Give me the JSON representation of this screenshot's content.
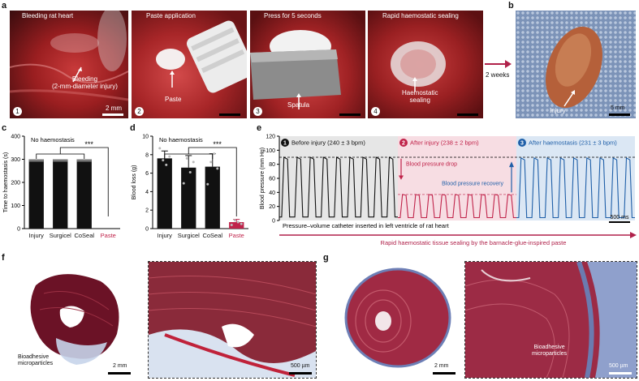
{
  "panels": {
    "a": "a",
    "b": "b",
    "c": "c",
    "d": "d",
    "e": "e",
    "f": "f",
    "g": "g"
  },
  "panel_a": {
    "steps": [
      {
        "num": "1",
        "title": "Bleeding rat heart",
        "label": "Bleeding\n(2-mm-diameter injury)",
        "scale": "2 mm"
      },
      {
        "num": "2",
        "title": "Paste application",
        "label": "Paste",
        "scale": ""
      },
      {
        "num": "3",
        "title": "Press for 5 seconds",
        "label": "Spatula",
        "scale": ""
      },
      {
        "num": "4",
        "title": "Rapid haemostatic sealing",
        "label": "Haemostatic\nsealing",
        "scale": ""
      }
    ],
    "arrow_label": "2 weeks"
  },
  "panel_b": {
    "label": "Injury",
    "scale": "5 mm"
  },
  "chart_data": [
    {
      "type": "bar",
      "panel": "c",
      "categories": [
        "Injury",
        "Surgicel",
        "CoSeal",
        "Paste"
      ],
      "values": [
        300,
        300,
        300,
        0
      ],
      "ylabel": "Time to haemostasis (s)",
      "ylim": [
        0,
        400
      ],
      "yticks": [
        0,
        100,
        200,
        300,
        400
      ],
      "annotation": "No haemostasis",
      "significance": "***",
      "colors": [
        "#111111",
        "#111111",
        "#111111",
        "#c0234a"
      ]
    },
    {
      "type": "bar",
      "panel": "d",
      "categories": [
        "Injury",
        "Surgicel",
        "CoSeal",
        "Paste"
      ],
      "values": [
        7.6,
        6.6,
        6.7,
        0.7
      ],
      "errors": [
        0.8,
        1.3,
        1.4,
        0.3
      ],
      "points": [
        [
          8.7,
          7.4,
          6.9,
          7.8
        ],
        [
          4.9,
          7.6,
          6.1,
          7.2
        ],
        [
          4.8,
          7.2,
          8.1,
          6.5
        ],
        [
          0.4,
          0.9,
          0.7,
          0.5
        ]
      ],
      "ylabel": "Blood loss (g)",
      "ylim": [
        0,
        10
      ],
      "yticks": [
        0,
        2,
        4,
        6,
        8,
        10
      ],
      "annotation": "No haemostasis",
      "significance": "***",
      "colors": [
        "#111111",
        "#111111",
        "#111111",
        "#c0234a"
      ]
    },
    {
      "type": "line",
      "panel": "e",
      "ylabel": "Blood pressure (mm Hg)",
      "ylim": [
        0,
        120
      ],
      "yticks": [
        0,
        20,
        40,
        60,
        80,
        100,
        120
      ],
      "segments": [
        {
          "num": "1",
          "name": "Before injury (240 ± 3 bpm)",
          "color": "#111111",
          "bg": "#e6e6e6",
          "peak": 90,
          "trough": 5,
          "cycles": 9
        },
        {
          "num": "2",
          "name": "After injury (238 ± 2 bpm)",
          "color": "#c0234a",
          "bg": "#f7dde3",
          "peak": 37,
          "trough": 4,
          "cycles": 9
        },
        {
          "num": "3",
          "name": "After haemostasis (231 ± 3 bpm)",
          "color": "#1f5fa8",
          "bg": "#dbe7f4",
          "peak": 89,
          "trough": 4,
          "cycles": 9
        }
      ],
      "annotations": {
        "drop": "Blood pressure drop",
        "recovery": "Blood pressure recovery",
        "catheter": "Pressure–volume catheter inserted in left ventricle of rat heart",
        "time_scale": "500 ms"
      },
      "bottom_arrow_label": "Rapid haemostatic tissue sealing by the barnacle-glue-inspired paste"
    }
  ],
  "panel_f": {
    "label": "Bioadhesive\nmicroparticles",
    "scale_left": "2 mm",
    "scale_right": "500 µm"
  },
  "panel_g": {
    "label": "Bioadhesive\nmicroparticles",
    "scale_left": "2 mm",
    "scale_right": "500 µm"
  }
}
